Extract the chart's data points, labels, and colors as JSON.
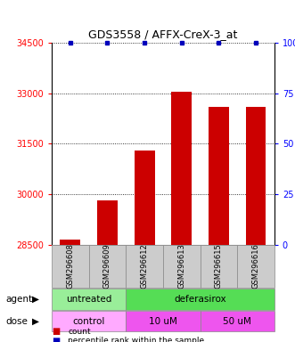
{
  "title": "GDS3558 / AFFX-CreX-3_at",
  "categories": [
    "GSM296608",
    "GSM296609",
    "GSM296612",
    "GSM296613",
    "GSM296615",
    "GSM296616"
  ],
  "counts": [
    28660,
    29820,
    31300,
    33050,
    32600,
    32600
  ],
  "percentiles": [
    100,
    100,
    100,
    100,
    100,
    100
  ],
  "ylim_left": [
    28500,
    34500
  ],
  "ylim_right": [
    0,
    100
  ],
  "yticks_left": [
    28500,
    30000,
    31500,
    33000,
    34500
  ],
  "yticks_right": [
    0,
    25,
    50,
    75,
    100
  ],
  "bar_color": "#cc0000",
  "dot_color": "#0000bb",
  "bar_width": 0.55,
  "agent_groups": [
    {
      "label": "untreated",
      "start": 0,
      "end": 2,
      "color": "#99ee99"
    },
    {
      "label": "deferasirox",
      "start": 2,
      "end": 6,
      "color": "#55dd55"
    }
  ],
  "dose_groups": [
    {
      "label": "control",
      "start": 0,
      "end": 2,
      "color": "#ffaaff"
    },
    {
      "label": "10 uM",
      "start": 2,
      "end": 4,
      "color": "#ee55ee"
    },
    {
      "label": "50 uM",
      "start": 4,
      "end": 6,
      "color": "#ee55ee"
    }
  ],
  "agent_label": "agent",
  "dose_label": "dose",
  "legend_count_label": "count",
  "legend_pct_label": "percentile rank within the sample",
  "title_fontsize": 9,
  "tick_fontsize": 7,
  "label_fontsize": 7.5,
  "sample_fontsize": 6,
  "background_color": "#ffffff",
  "plot_bg_color": "#ffffff",
  "grid_color": "#000000",
  "box_color": "#cccccc",
  "box_edge_color": "#888888"
}
